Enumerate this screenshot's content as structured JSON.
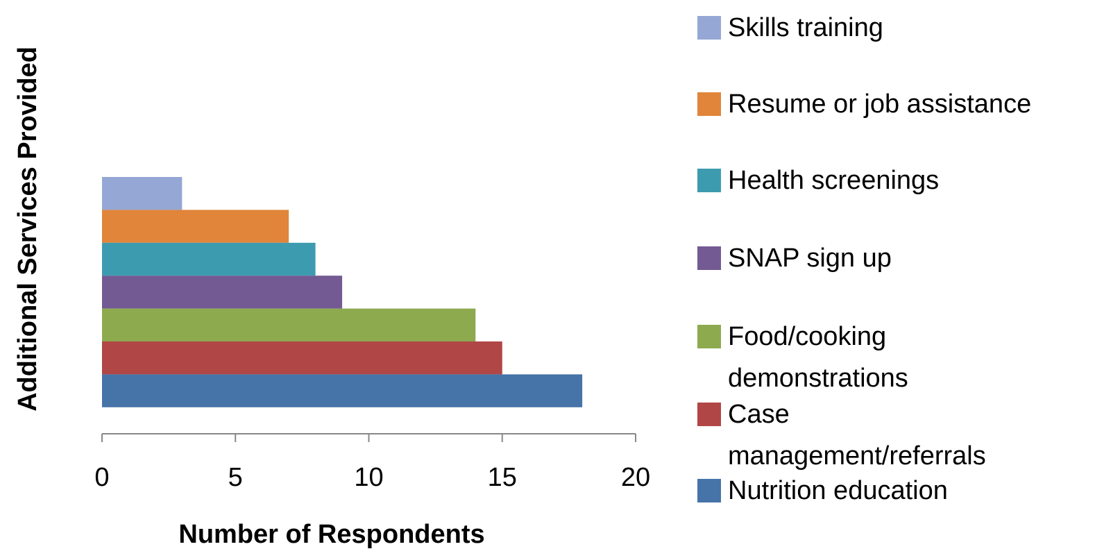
{
  "chart_data": {
    "type": "bar",
    "orientation": "horizontal",
    "xlabel": "Number of Respondents",
    "ylabel": "Additional Services Provided",
    "series": [
      {
        "name": "Skills training",
        "color": "#95a7d4",
        "values": [
          3
        ]
      },
      {
        "name": "Resume or job assistance",
        "color": "#e0853a",
        "values": [
          7
        ]
      },
      {
        "name": "Health screenings",
        "color": "#3d9bb0",
        "values": [
          8
        ]
      },
      {
        "name": "SNAP sign up",
        "color": "#735a93",
        "values": [
          9
        ]
      },
      {
        "name": "Food/cooking demonstrations",
        "color": "#8daa4f",
        "values": [
          14
        ]
      },
      {
        "name": "Case management/referrals",
        "color": "#b04645",
        "values": [
          15
        ]
      },
      {
        "name": "Nutrition education",
        "color": "#4673a8",
        "values": [
          18
        ]
      }
    ],
    "xlim": [
      0,
      20
    ],
    "xticks": [
      0,
      5,
      10,
      15,
      20
    ],
    "legend": "right"
  }
}
